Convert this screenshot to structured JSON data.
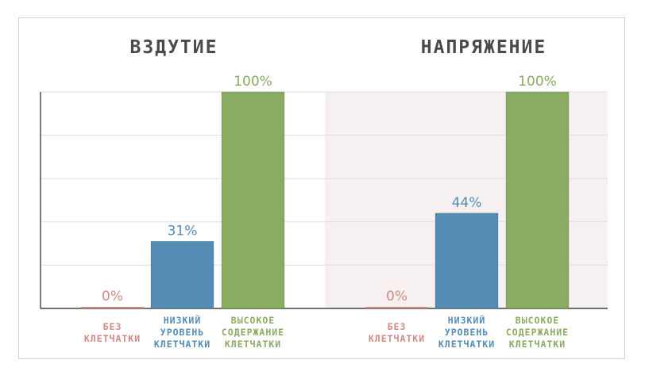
{
  "chart_data": [
    {
      "type": "bar",
      "title": "ВЗДУТИЕ",
      "categories": [
        "БЕЗ КЛЕТЧАТКИ",
        "НИЗКИЙ УРОВЕНЬ КЛЕТЧАТКИ",
        "ВЫСОКОЕ СОДЕРЖАНИЕ КЛЕТЧАТКИ"
      ],
      "category_lines": [
        [
          "БЕЗ",
          "КЛЕТЧАТКИ"
        ],
        [
          "НИЗКИЙ",
          "УРОВЕНЬ",
          "КЛЕТЧАТКИ"
        ],
        [
          "ВЫСОКОЕ",
          "СОДЕРЖАНИЕ",
          "КЛЕТЧАТКИ"
        ]
      ],
      "values": [
        0,
        31,
        100
      ],
      "value_labels": [
        "0%",
        "31%",
        "100%"
      ],
      "ylim": [
        0,
        100
      ],
      "grid": true,
      "shaded_background": false
    },
    {
      "type": "bar",
      "title": "НАПРЯЖЕНИЕ",
      "categories": [
        "БЕЗ КЛЕТЧАТКИ",
        "НИЗКИЙ УРОВЕНЬ КЛЕТЧАТКИ",
        "ВЫСОКОЕ СОДЕРЖАНИЕ КЛЕТЧАТКИ"
      ],
      "category_lines": [
        [
          "БЕЗ",
          "КЛЕТЧАТКИ"
        ],
        [
          "НИЗКИЙ",
          "УРОВЕНЬ",
          "КЛЕТЧАТКИ"
        ],
        [
          "ВЫСОКОЕ",
          "СОДЕРЖАНИЕ",
          "КЛЕТЧАТКИ"
        ]
      ],
      "values": [
        0,
        44,
        100
      ],
      "value_labels": [
        "0%",
        "44%",
        "100%"
      ],
      "ylim": [
        0,
        100
      ],
      "grid": true,
      "shaded_background": true
    }
  ],
  "colors": {
    "series": [
      "#d08b85",
      "#548cb5",
      "#8aac62"
    ],
    "title": "#4a4a4a",
    "grid": "#dddddd",
    "axis": "#222222",
    "shade": "#f6f1f0"
  }
}
